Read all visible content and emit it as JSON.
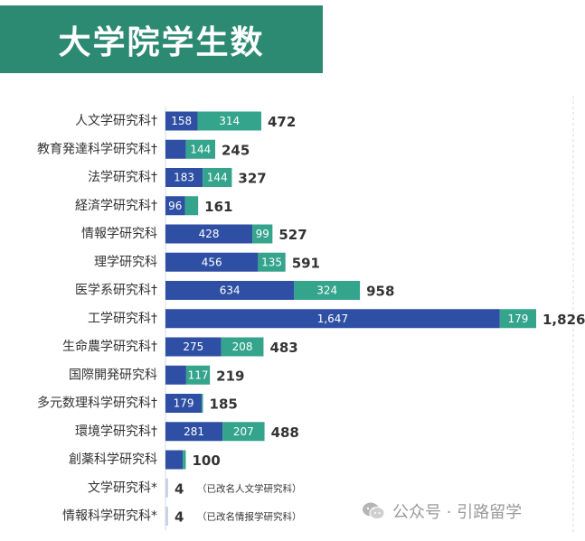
{
  "header": {
    "title": "大学院学生数"
  },
  "watermark": {
    "text": "公众号 · 引路留学"
  },
  "colors": {
    "series1": "#2e4fa3",
    "series2": "#35a48c",
    "banner": "#2d8a72",
    "thin": "#c8d4e6",
    "axis": "#d0dae8"
  },
  "chart_data": {
    "type": "bar",
    "orientation": "horizontal",
    "stacked": true,
    "title": "大学院学生数",
    "categories": [
      "人文学研究科†",
      "教育発達科学研究科†",
      "法学研究科†",
      "経済学研究科†",
      "情報学研究科",
      "理学研究科",
      "医学系研究科†",
      "工学研究科†",
      "生命農学研究科†",
      "国際開発研究科",
      "多元数理科学研究科†",
      "環境学研究科†",
      "創薬科学研究科",
      "文学研究科*",
      "情報科学研究科*"
    ],
    "series": [
      {
        "name": "series1",
        "values": [
          158,
          101,
          183,
          96,
          428,
          456,
          634,
          1647,
          275,
          102,
          179,
          281,
          85,
          4,
          4
        ],
        "labels": [
          "158",
          "",
          "183",
          "96",
          "428",
          "456",
          "634",
          "1,647",
          "275",
          "",
          "179",
          "281",
          "",
          "",
          ""
        ]
      },
      {
        "name": "series2",
        "values": [
          314,
          144,
          144,
          65,
          99,
          135,
          324,
          179,
          208,
          117,
          6,
          207,
          15,
          0,
          0
        ],
        "labels": [
          "314",
          "144",
          "144",
          "",
          "99",
          "135",
          "324",
          "179",
          "208",
          "117",
          "",
          "207",
          "",
          "",
          ""
        ]
      }
    ],
    "totals": [
      "472",
      "245",
      "327",
      "161",
      "527",
      "591",
      "958",
      "1,826",
      "483",
      "219",
      "185",
      "488",
      "100",
      "4",
      "4"
    ],
    "notes": [
      "",
      "",
      "",
      "",
      "",
      "",
      "",
      "",
      "",
      "",
      "",
      "",
      "",
      "（已改名人文学研究科）",
      "（已改名情报学研究科）"
    ],
    "xlim": [
      0,
      1826
    ]
  }
}
